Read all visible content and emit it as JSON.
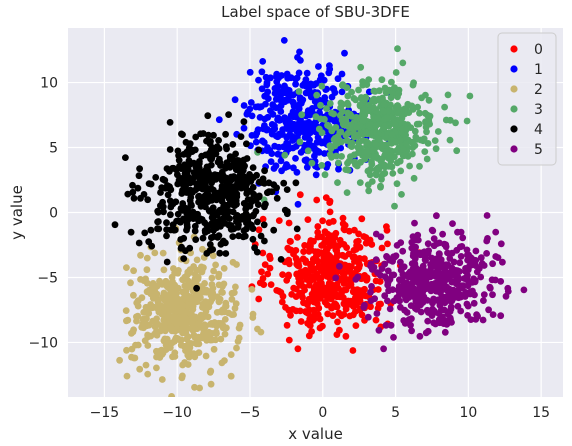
{
  "chart_data": {
    "type": "scatter",
    "title": "Label space of SBU-3DFE",
    "xlabel": "x value",
    "ylabel": "y value",
    "xlim": [
      -17.5,
      16.5
    ],
    "ylim": [
      -14.2,
      14.2
    ],
    "xticks": [
      -15,
      -10,
      -5,
      0,
      5,
      10,
      15
    ],
    "yticks": [
      -10,
      -5,
      0,
      5,
      10
    ],
    "grid": true,
    "background": "#eaeaf2",
    "legend_position": "top-right",
    "series": [
      {
        "name": "0",
        "color": "#ff0000",
        "center": [
          0.5,
          -4.8
        ],
        "spread": [
          1.9,
          2.2
        ],
        "n": 460
      },
      {
        "name": "1",
        "color": "#0000ff",
        "center": [
          -1.3,
          7.2
        ],
        "spread": [
          2.0,
          2.0
        ],
        "n": 380
      },
      {
        "name": "2",
        "color": "#c8b46e",
        "center": [
          -9.5,
          -7.8
        ],
        "spread": [
          1.8,
          2.1
        ],
        "n": 500
      },
      {
        "name": "3",
        "color": "#55a868",
        "center": [
          3.8,
          6.3
        ],
        "spread": [
          2.0,
          1.9
        ],
        "n": 460
      },
      {
        "name": "4",
        "color": "#000000",
        "center": [
          -7.6,
          1.3
        ],
        "spread": [
          2.2,
          2.2
        ],
        "n": 520
      },
      {
        "name": "5",
        "color": "#800080",
        "center": [
          7.5,
          -5.2
        ],
        "spread": [
          2.0,
          1.8
        ],
        "n": 460
      }
    ]
  }
}
